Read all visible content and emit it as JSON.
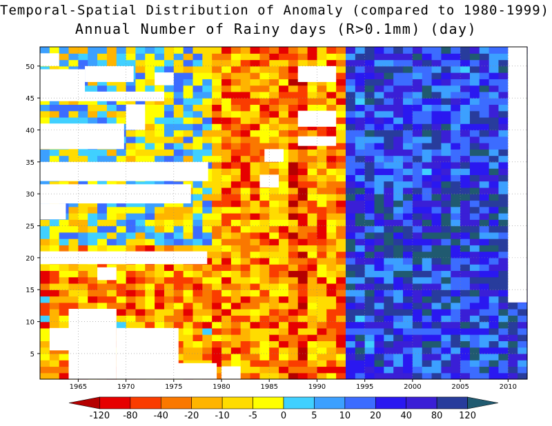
{
  "title_line1": "Temporal-Spatial Distribution of Anomaly (compared to 1980-1999) of",
  "title_line2": "Annual Number of Rainy days (R>0.1mm) (day)",
  "chart_data": {
    "type": "heatmap",
    "title": "Temporal-Spatial Distribution of Anomaly (compared to 1980-1999) of Annual Number of Rainy days (R>0.1mm) (day)",
    "x_ticks": [
      1965,
      1970,
      1975,
      1980,
      1985,
      1990,
      1995,
      2000,
      2005,
      2010
    ],
    "y_ticks": [
      5,
      10,
      15,
      20,
      25,
      30,
      35,
      40,
      45,
      50
    ],
    "xlim": [
      1961,
      2012
    ],
    "ylim": [
      1,
      53
    ],
    "grid": true,
    "colorbar": {
      "labels": [
        "-120",
        "-80",
        "-40",
        "-20",
        "-10",
        "-5",
        "0",
        "5",
        "10",
        "20",
        "40",
        "80",
        "120"
      ],
      "colors": [
        "#b50000",
        "#e60000",
        "#fa3c00",
        "#fa7800",
        "#ffb400",
        "#ffdc00",
        "#ffff00",
        "#40d0ff",
        "#3ca0ff",
        "#3c6cff",
        "#2a18f0",
        "#3a1fd6",
        "#283c9c",
        "#205a70"
      ]
    },
    "period_anomaly_pattern": [
      {
        "years": "1961-1978",
        "tendency": "mixed, mostly negative in south"
      },
      {
        "years": "1979-1992",
        "tendency": "negative (dry) dominant"
      },
      {
        "years": "1993-2010",
        "tendency": "positive (wet) dominant"
      }
    ]
  }
}
